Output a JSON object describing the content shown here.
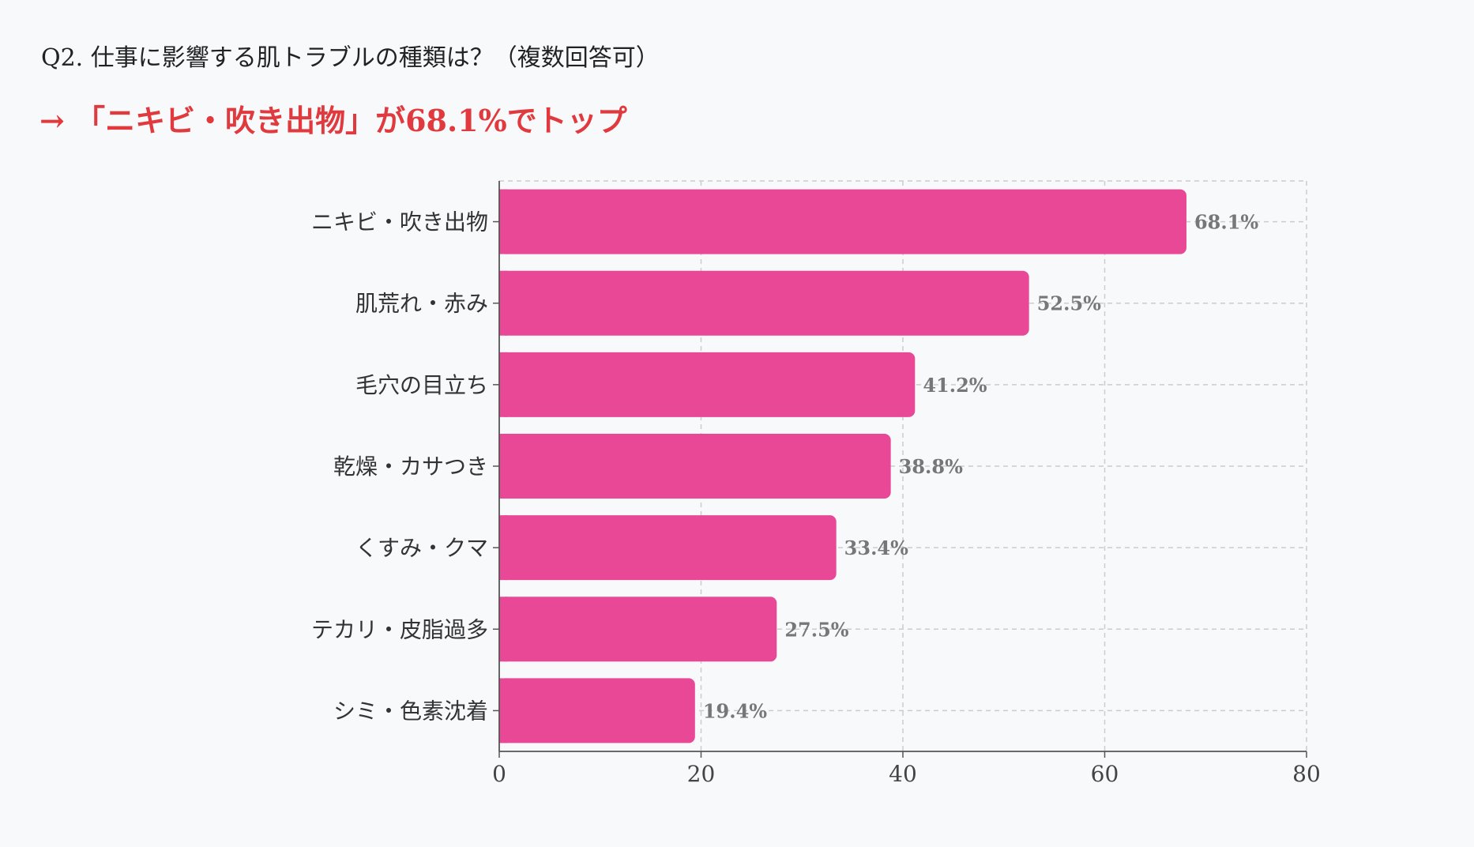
{
  "question": "Q2. 仕事に影響する肌トラブルの種類は？（複数回答可）",
  "headline": "→ 「ニキビ・吹き出物」が68.1%でトップ",
  "colors": {
    "bar": "#e94896",
    "headline": "#e03a3e",
    "value_label": "#777777",
    "grid": "#cccccc"
  },
  "chart_data": {
    "type": "bar",
    "orientation": "horizontal",
    "categories": [
      "ニキビ・吹き出物",
      "肌荒れ・赤み",
      "毛穴の目立ち",
      "乾燥・カサつき",
      "くすみ・クマ",
      "テカリ・皮脂過多",
      "シミ・色素沈着"
    ],
    "values": [
      68.1,
      52.5,
      41.2,
      38.8,
      33.4,
      27.5,
      19.4
    ],
    "value_labels": [
      "68.1%",
      "52.5%",
      "41.2%",
      "38.8%",
      "33.4%",
      "27.5%",
      "19.4%"
    ],
    "xlim": [
      0,
      80
    ],
    "xticks": [
      0,
      20,
      40,
      60,
      80
    ],
    "xlabel": "",
    "ylabel": "",
    "grid": true
  }
}
